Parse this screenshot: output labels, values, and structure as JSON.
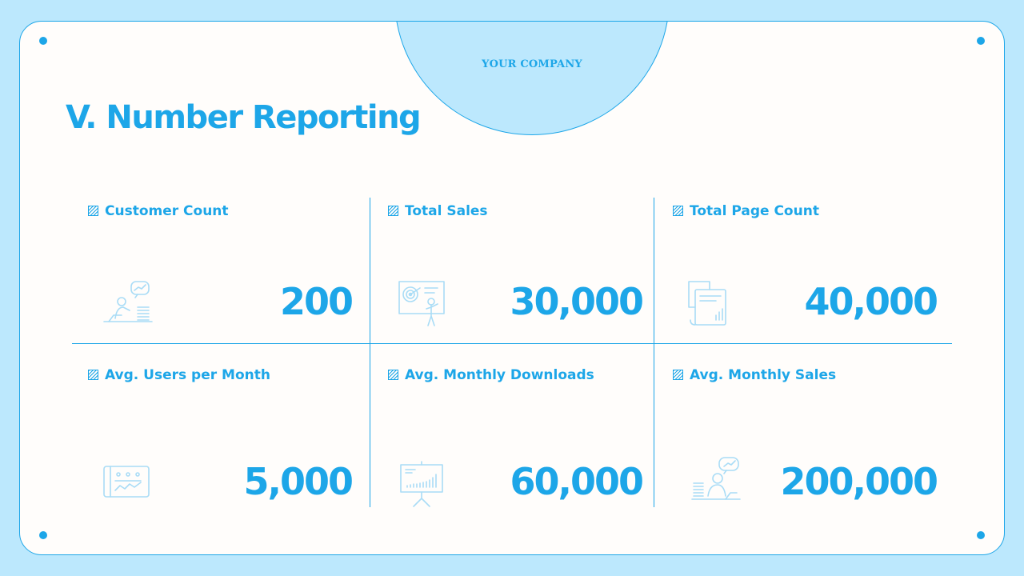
{
  "header": {
    "company": "YOUR COMPANY"
  },
  "slide": {
    "title": "V. Number Reporting"
  },
  "metrics": [
    {
      "label": "Customer Count",
      "value": "200",
      "icon": "presenter-chart-icon"
    },
    {
      "label": "Total Sales",
      "value": "30,000",
      "icon": "target-board-icon"
    },
    {
      "label": "Total Page Count",
      "value": "40,000",
      "icon": "document-stack-icon"
    },
    {
      "label": "Avg. Users per Month",
      "value": "5,000",
      "icon": "tablet-chart-icon"
    },
    {
      "label": "Avg. Monthly Downloads",
      "value": "60,000",
      "icon": "easel-chart-icon"
    },
    {
      "label": "Avg. Monthly Sales",
      "value": "200,000",
      "icon": "person-coins-icon"
    }
  ],
  "colors": {
    "accent": "#1da6e8",
    "background": "#bce8fd",
    "card": "#fffdfb",
    "icon": "#a9dcf6"
  }
}
